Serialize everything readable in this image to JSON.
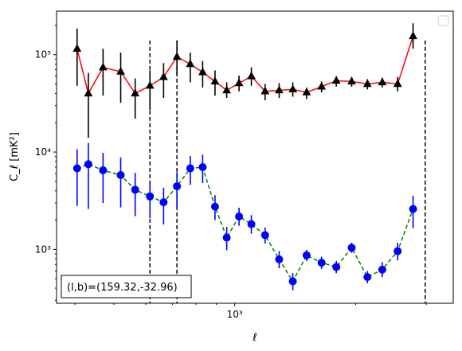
{
  "chart_data": {
    "type": "scatter",
    "xlabel": "ℓ",
    "ylabel": "C_ℓ  [mK²]",
    "xscale": "log",
    "yscale": "log",
    "xlim": [
      360,
      3500
    ],
    "ylim": [
      280,
      280000
    ],
    "grid": false,
    "legend": "upper right, empty",
    "x_tick_labels": [
      {
        "value": 1000,
        "label": "10³"
      }
    ],
    "y_tick_labels": [
      {
        "value": 1000,
        "label": "10³"
      },
      {
        "value": 10000,
        "label": "10⁴"
      },
      {
        "value": 100000,
        "label": "10⁵"
      }
    ],
    "vlines": [
      615,
      718,
      2980
    ],
    "annotation": "(l,b)=(159.32,-32.96)",
    "series": [
      {
        "marker": "triangle",
        "marker_color": "#000000",
        "line_color": "#ff0000",
        "linestyle": "solid",
        "points": [
          {
            "x": 405,
            "y": 115000,
            "lo": 48000,
            "hi": 185000
          },
          {
            "x": 432,
            "y": 40000,
            "lo": 14000,
            "hi": 65000
          },
          {
            "x": 470,
            "y": 74000,
            "lo": 38000,
            "hi": 115000
          },
          {
            "x": 520,
            "y": 67000,
            "lo": 32000,
            "hi": 105000
          },
          {
            "x": 565,
            "y": 40000,
            "lo": 22000,
            "hi": 57000
          },
          {
            "x": 615,
            "y": 48000,
            "lo": 27000,
            "hi": 69000
          },
          {
            "x": 665,
            "y": 59000,
            "lo": 36000,
            "hi": 82000
          },
          {
            "x": 718,
            "y": 95000,
            "lo": 62000,
            "hi": 140000
          },
          {
            "x": 775,
            "y": 80000,
            "lo": 52000,
            "hi": 105000
          },
          {
            "x": 832,
            "y": 66000,
            "lo": 46000,
            "hi": 86000
          },
          {
            "x": 893,
            "y": 53000,
            "lo": 38000,
            "hi": 69000
          },
          {
            "x": 955,
            "y": 43000,
            "lo": 36000,
            "hi": 52000
          },
          {
            "x": 1025,
            "y": 51000,
            "lo": 42000,
            "hi": 61000
          },
          {
            "x": 1100,
            "y": 60000,
            "lo": 48000,
            "hi": 74000
          },
          {
            "x": 1190,
            "y": 42000,
            "lo": 34000,
            "hi": 50000
          },
          {
            "x": 1290,
            "y": 43000,
            "lo": 36000,
            "hi": 51000
          },
          {
            "x": 1395,
            "y": 44000,
            "lo": 37000,
            "hi": 52000
          },
          {
            "x": 1510,
            "y": 41000,
            "lo": 35000,
            "hi": 46000
          },
          {
            "x": 1645,
            "y": 47000,
            "lo": 41000,
            "hi": 53000
          },
          {
            "x": 1790,
            "y": 54000,
            "lo": 47000,
            "hi": 60000
          },
          {
            "x": 1955,
            "y": 53000,
            "lo": 47000,
            "hi": 59000
          },
          {
            "x": 2140,
            "y": 50000,
            "lo": 44000,
            "hi": 56000
          },
          {
            "x": 2330,
            "y": 52000,
            "lo": 46000,
            "hi": 58000
          },
          {
            "x": 2545,
            "y": 50000,
            "lo": 42000,
            "hi": 59000
          },
          {
            "x": 2780,
            "y": 155000,
            "lo": 115000,
            "hi": 210000
          }
        ]
      },
      {
        "marker": "circle",
        "marker_color": "#0000ff",
        "line_color": "#008000",
        "linestyle": "dashed",
        "points": [
          {
            "x": 405,
            "y": 6800,
            "lo": 2800,
            "hi": 10700
          },
          {
            "x": 432,
            "y": 7500,
            "lo": 2600,
            "hi": 12400
          },
          {
            "x": 470,
            "y": 6500,
            "lo": 3000,
            "hi": 9800
          },
          {
            "x": 520,
            "y": 5800,
            "lo": 2700,
            "hi": 8800
          },
          {
            "x": 565,
            "y": 4100,
            "lo": 2200,
            "hi": 6100
          },
          {
            "x": 615,
            "y": 3500,
            "lo": 2100,
            "hi": 4900
          },
          {
            "x": 665,
            "y": 3050,
            "lo": 1800,
            "hi": 4300
          },
          {
            "x": 718,
            "y": 4450,
            "lo": 2700,
            "hi": 6200
          },
          {
            "x": 775,
            "y": 6800,
            "lo": 4600,
            "hi": 9100
          },
          {
            "x": 832,
            "y": 7000,
            "lo": 4800,
            "hi": 9400
          },
          {
            "x": 893,
            "y": 2750,
            "lo": 2000,
            "hi": 3600
          },
          {
            "x": 955,
            "y": 1320,
            "lo": 980,
            "hi": 1700
          },
          {
            "x": 1025,
            "y": 2180,
            "lo": 1750,
            "hi": 2680
          },
          {
            "x": 1100,
            "y": 1820,
            "lo": 1450,
            "hi": 2250
          },
          {
            "x": 1190,
            "y": 1400,
            "lo": 1150,
            "hi": 1680
          },
          {
            "x": 1290,
            "y": 790,
            "lo": 640,
            "hi": 960
          },
          {
            "x": 1395,
            "y": 470,
            "lo": 380,
            "hi": 570
          },
          {
            "x": 1510,
            "y": 870,
            "lo": 760,
            "hi": 990
          },
          {
            "x": 1645,
            "y": 730,
            "lo": 630,
            "hi": 840
          },
          {
            "x": 1790,
            "y": 660,
            "lo": 570,
            "hi": 760
          },
          {
            "x": 1955,
            "y": 1040,
            "lo": 920,
            "hi": 1170
          },
          {
            "x": 2140,
            "y": 520,
            "lo": 450,
            "hi": 600
          },
          {
            "x": 2330,
            "y": 620,
            "lo": 520,
            "hi": 740
          },
          {
            "x": 2545,
            "y": 960,
            "lo": 770,
            "hi": 1170
          },
          {
            "x": 2780,
            "y": 2600,
            "lo": 1650,
            "hi": 3550
          }
        ]
      }
    ]
  }
}
